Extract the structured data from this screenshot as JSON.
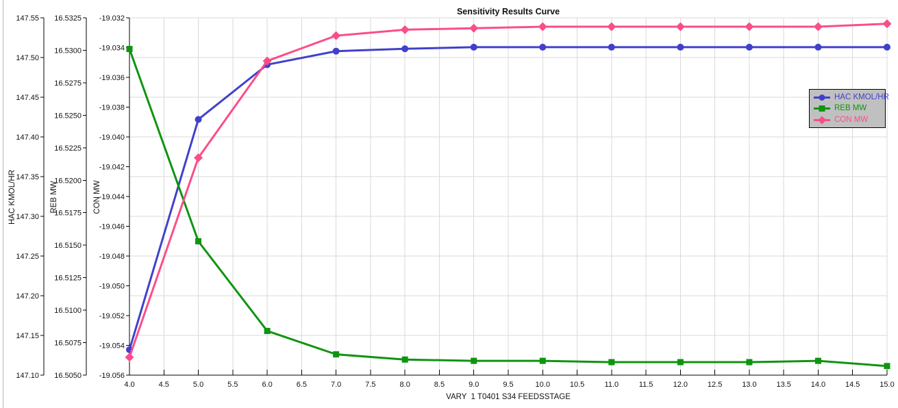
{
  "chart_data": {
    "type": "line",
    "title": "Sensitivity Results Curve",
    "xlabel": "VARY  1 T0401 S34 FEEDSSTAGE",
    "grid": true,
    "legend_position": "right",
    "x": [
      4,
      5,
      6,
      7,
      8,
      9,
      10,
      11,
      12,
      13,
      14,
      15
    ],
    "x_axis": {
      "min": 4.0,
      "max": 15.0,
      "tick_step": 0.5,
      "decimals": 1
    },
    "y_axes": [
      {
        "label": "HAC KMOL/HR",
        "min": 147.1,
        "max": 147.55,
        "tick_step": 0.05,
        "decimals": 2
      },
      {
        "label": "REB MW",
        "min": 16.505,
        "max": 16.5325,
        "tick_step": 0.0025,
        "decimals": 4
      },
      {
        "label": "CON MW",
        "min": -19.056,
        "max": -19.032,
        "tick_step": 0.002,
        "decimals": 3
      }
    ],
    "series": [
      {
        "name": "HAC KMOL/HR",
        "axis": 0,
        "color": "#4040cc",
        "marker": "circle",
        "values": [
          147.132,
          147.422,
          147.491,
          147.508,
          147.511,
          147.513,
          147.513,
          147.513,
          147.513,
          147.513,
          147.513,
          147.513
        ]
      },
      {
        "name": "REB MW",
        "axis": 1,
        "color": "#0f9410",
        "marker": "square",
        "values": [
          16.5301,
          16.5153,
          16.5084,
          16.5066,
          16.5062,
          16.5061,
          16.5061,
          16.506,
          16.506,
          16.506,
          16.5061,
          16.5057
        ]
      },
      {
        "name": "CON MW",
        "axis": 2,
        "color": "#fa4d8a",
        "marker": "diamond",
        "values": [
          -19.0548,
          -19.0414,
          -19.0349,
          -19.0332,
          -19.0328,
          -19.0327,
          -19.0326,
          -19.0326,
          -19.0326,
          -19.0326,
          -19.0326,
          -19.0324
        ]
      }
    ],
    "colors": {
      "grid": "#d9d9d9",
      "axis": "#000000",
      "legend_bg": "#c0c0c0",
      "legend_border": "#000000"
    }
  }
}
